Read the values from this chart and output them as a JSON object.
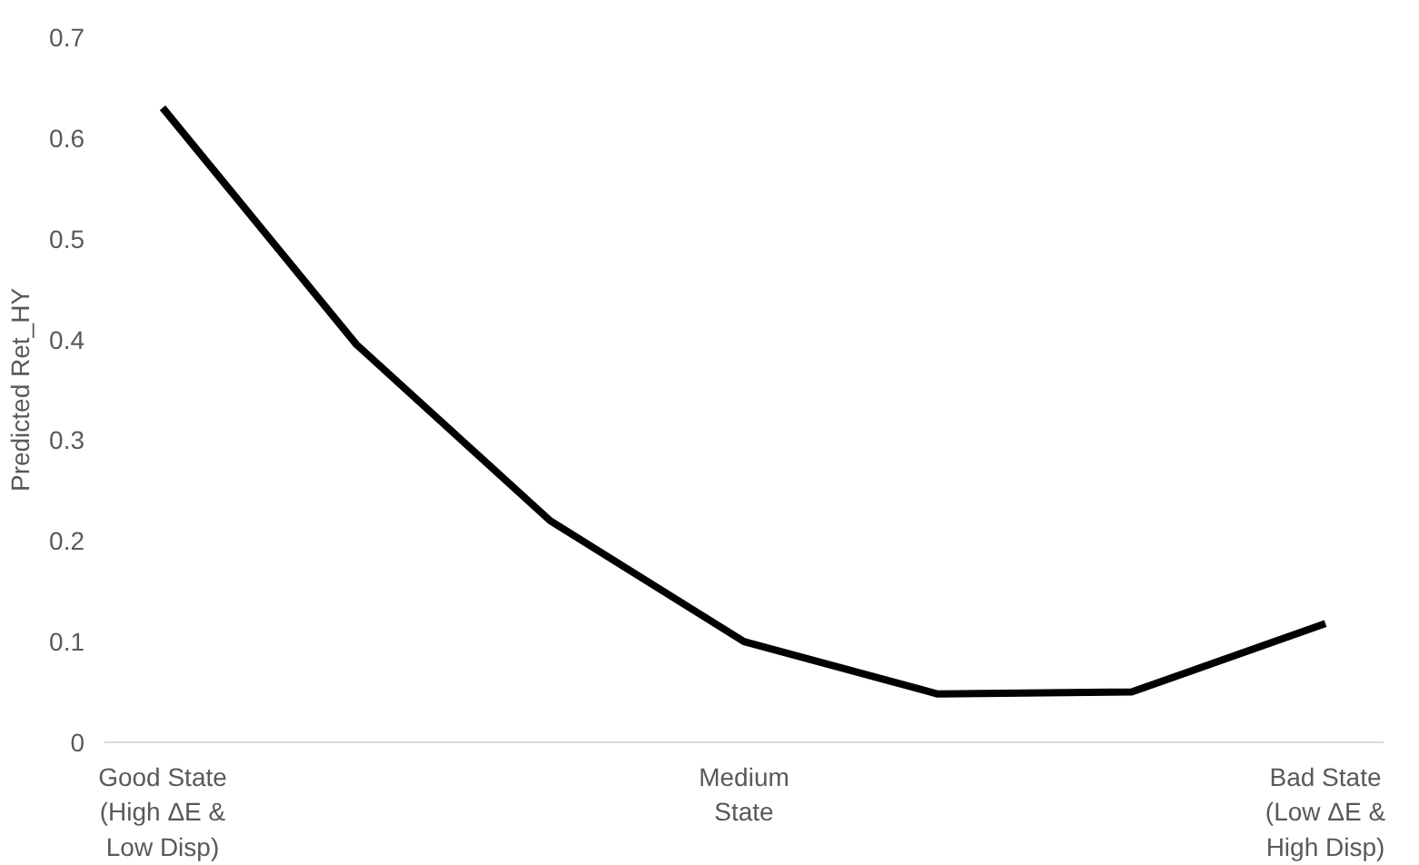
{
  "chart_data": {
    "type": "line",
    "ylabel": "Predicted Ret_HY",
    "categories": [
      "Good State\n(High ΔE &\nLow Disp)",
      null,
      null,
      "Medium\nState",
      null,
      null,
      "Bad State\n(Low ΔE &\nHigh Disp)"
    ],
    "series": [
      {
        "color": "#000000",
        "values": [
          0.63,
          0.395,
          0.22,
          0.1,
          0.048,
          0.05,
          0.118
        ]
      }
    ],
    "ylim": [
      0,
      0.7
    ],
    "yticks": [
      0,
      0.1,
      0.2,
      0.3,
      0.4,
      0.5,
      0.6,
      0.7
    ],
    "grid": false,
    "marker": "none",
    "line_style": "solid"
  }
}
